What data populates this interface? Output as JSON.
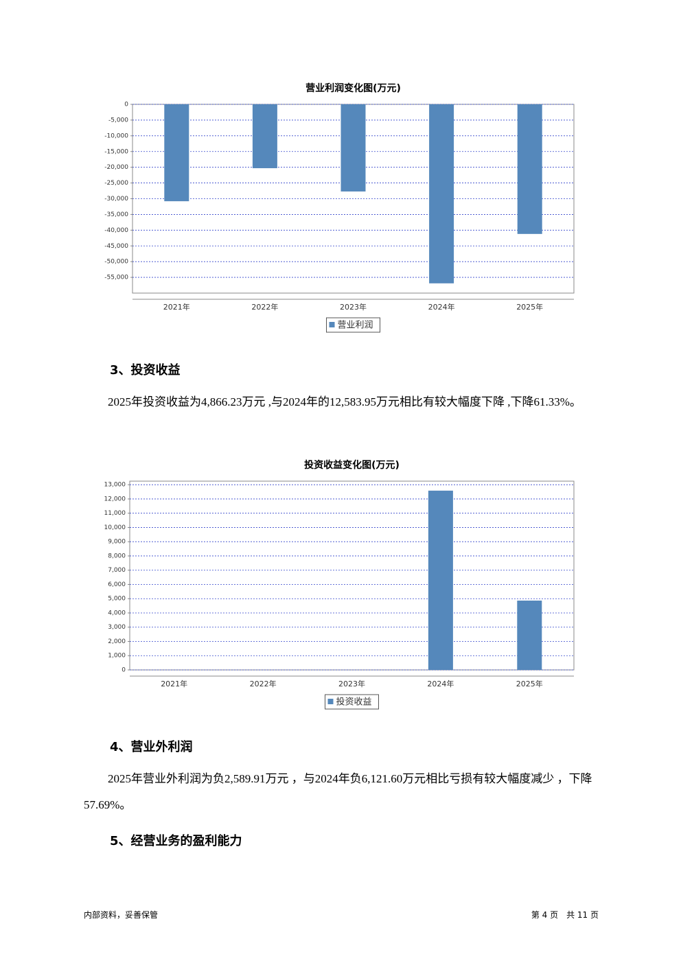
{
  "chart_data": [
    {
      "type": "bar",
      "title": "营业利润变化图(万元)",
      "categories": [
        "2021年",
        "2022年",
        "2023年",
        "2024年",
        "2025年"
      ],
      "series": [
        {
          "name": "营业利润",
          "color": "#5588bb",
          "values": [
            -30800,
            -20300,
            -27700,
            -56900,
            -41200
          ]
        }
      ],
      "ylim": [
        -60000,
        0
      ],
      "yticks": [
        0,
        {
          "value": -5000,
          "label": "-5,000"
        },
        {
          "value": -10000,
          "label": "-10,000"
        },
        {
          "value": -15000,
          "label": "-15,000"
        },
        {
          "value": -20000,
          "label": "-20,000"
        },
        {
          "value": -25000,
          "label": "-25,000"
        },
        {
          "value": -30000,
          "label": "-30,000"
        },
        {
          "value": -35000,
          "label": "-35,000"
        },
        {
          "value": -40000,
          "label": "-40,000"
        },
        {
          "value": -45000,
          "label": "-45,000"
        },
        {
          "value": -50000,
          "label": "-50,000"
        },
        {
          "value": -55000,
          "label": "-55,000"
        }
      ],
      "grid": true
    },
    {
      "type": "bar",
      "title": "投资收益变化图(万元)",
      "categories": [
        "2021年",
        "2022年",
        "2023年",
        "2024年",
        "2025年"
      ],
      "series": [
        {
          "name": "投资收益",
          "color": "#5588bb",
          "values": [
            0,
            0,
            0,
            12583.95,
            4866.23
          ]
        }
      ],
      "ylim": [
        0,
        13250
      ],
      "yticks": [
        0,
        {
          "value": 1000,
          "label": "1,000"
        },
        {
          "value": 2000,
          "label": "2,000"
        },
        {
          "value": 3000,
          "label": "3,000"
        },
        {
          "value": 4000,
          "label": "4,000"
        },
        {
          "value": 5000,
          "label": "5,000"
        },
        {
          "value": 6000,
          "label": "6,000"
        },
        {
          "value": 7000,
          "label": "7,000"
        },
        {
          "value": 8000,
          "label": "8,000"
        },
        {
          "value": 9000,
          "label": "9,000"
        },
        {
          "value": 10000,
          "label": "10,000"
        },
        {
          "value": 11000,
          "label": "11,000"
        },
        {
          "value": 12000,
          "label": "12,000"
        },
        {
          "value": 13000,
          "label": "13,000"
        }
      ],
      "grid": true
    }
  ],
  "document": {
    "sections": [
      {
        "heading": "3、投资收益",
        "text": "2025年投资收益为4,866.23万元 ,与2024年的12,583.95万元相比有较大幅度下降 ,下降61.33%。"
      },
      {
        "heading": "4、营业外利润",
        "text": "2025年营业外利润为负2,589.91万元 ，与2024年负6,121.60万元相比亏损有较大幅度减少 ，下降57.69%。"
      },
      {
        "heading": "5、经营业务的盈利能力"
      }
    ],
    "footer": {
      "left": "内部资料，妥善保管",
      "right": "第 4 页　共 11 页"
    }
  }
}
